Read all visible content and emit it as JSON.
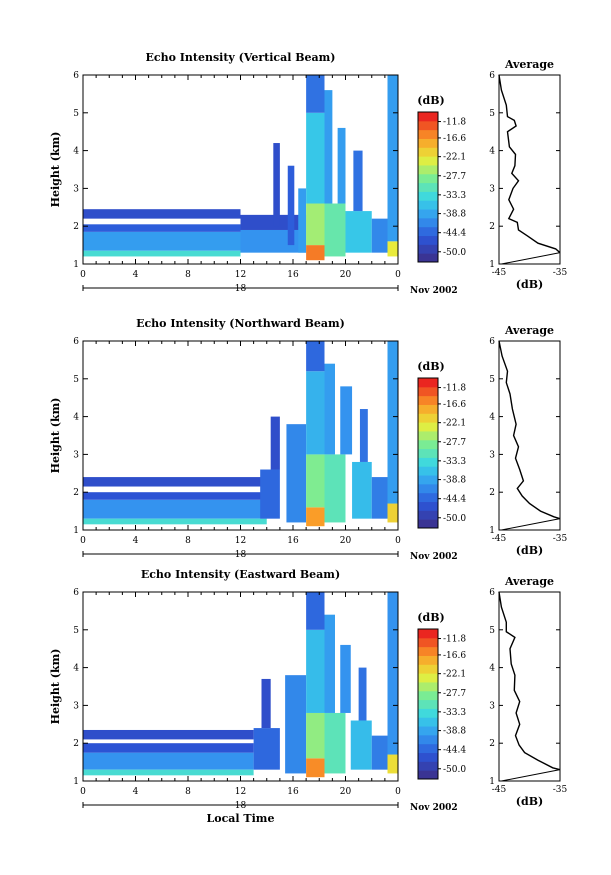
{
  "chart_data": [
    {
      "type": "heatmap",
      "title": "Echo Intensity (Vertical Beam)",
      "ylabel": "Height (km)",
      "xlabel": "",
      "x_ticks": [
        "0",
        "4",
        "8",
        "12",
        "16",
        "20",
        "0"
      ],
      "date_label": "18",
      "date_suffix": "Nov 2002",
      "xlim": [
        0,
        24
      ],
      "ylim": [
        1,
        6
      ],
      "y_ticks": [
        "1",
        "2",
        "3",
        "4",
        "5",
        "6"
      ],
      "colorbar": {
        "label": "(dB)",
        "ticks": [
          "-11.8",
          "-16.6",
          "-22.1",
          "-27.7",
          "-33.3",
          "-38.8",
          "-44.4",
          "-50.0"
        ],
        "range": [
          -53,
          -9
        ]
      },
      "average": {
        "title": "Average",
        "xlabel": "(dB)",
        "x_ticks": [
          "-45",
          "-35"
        ],
        "xlim": [
          -45,
          -35
        ],
        "profile": [
          [
            -45,
            6.0
          ],
          [
            -44.6,
            5.6
          ],
          [
            -43.8,
            5.2
          ],
          [
            -43.6,
            4.9
          ],
          [
            -42.5,
            4.8
          ],
          [
            -42.2,
            4.65
          ],
          [
            -43.6,
            4.5
          ],
          [
            -43.3,
            4.1
          ],
          [
            -42.3,
            3.9
          ],
          [
            -42.4,
            3.6
          ],
          [
            -42.9,
            3.4
          ],
          [
            -41.8,
            3.2
          ],
          [
            -42.7,
            3.0
          ],
          [
            -43.4,
            2.7
          ],
          [
            -42.6,
            2.45
          ],
          [
            -43.4,
            2.2
          ],
          [
            -42.0,
            2.1
          ],
          [
            -41.8,
            1.9
          ],
          [
            -40.4,
            1.75
          ],
          [
            -38.6,
            1.55
          ],
          [
            -35.7,
            1.4
          ],
          [
            -35,
            1.3
          ]
        ],
        "mean_line": [
          [
            -44.6,
            1.0
          ],
          [
            -35,
            1.3
          ]
        ]
      },
      "cells": [
        [
          0,
          12,
          1.35,
          1.85,
          -40
        ],
        [
          0,
          12,
          1.2,
          1.35,
          -33
        ],
        [
          0,
          12,
          1.85,
          2.05,
          -46
        ],
        [
          0,
          12,
          2.2,
          2.45,
          -48
        ],
        [
          12,
          17,
          1.3,
          1.9,
          -41
        ],
        [
          12,
          17,
          1.9,
          2.3,
          -48
        ],
        [
          14.5,
          15,
          2.0,
          4.2,
          -48
        ],
        [
          15.6,
          16.1,
          1.5,
          3.6,
          -46
        ],
        [
          16.4,
          17,
          1.3,
          3.0,
          -40
        ],
        [
          17,
          18.4,
          1.1,
          1.5,
          -14
        ],
        [
          17,
          18.4,
          1.5,
          2.6,
          -26
        ],
        [
          17,
          18.4,
          2.6,
          5.0,
          -36
        ],
        [
          17,
          18.4,
          5.0,
          6.0,
          -44
        ],
        [
          18.4,
          20,
          1.2,
          2.6,
          -30
        ],
        [
          18.4,
          19,
          2.6,
          5.6,
          -40
        ],
        [
          19.4,
          20,
          2.6,
          4.6,
          -40
        ],
        [
          20,
          22,
          1.3,
          2.4,
          -36
        ],
        [
          20.6,
          21.3,
          2.4,
          4.0,
          -44
        ],
        [
          22,
          23.2,
          1.3,
          2.2,
          -42
        ],
        [
          23.2,
          24,
          1.2,
          1.6,
          -22
        ],
        [
          23.2,
          24,
          1.6,
          6.0,
          -40
        ]
      ]
    },
    {
      "type": "heatmap",
      "title": "Echo Intensity (Northward Beam)",
      "ylabel": "Height (km)",
      "xlabel": "",
      "x_ticks": [
        "0",
        "4",
        "8",
        "12",
        "16",
        "20",
        "0"
      ],
      "date_label": "18",
      "date_suffix": "Nov 2002",
      "xlim": [
        0,
        24
      ],
      "ylim": [
        1,
        6
      ],
      "y_ticks": [
        "1",
        "2",
        "3",
        "4",
        "5",
        "6"
      ],
      "colorbar": {
        "label": "(dB)",
        "ticks": [
          "-11.8",
          "-16.6",
          "-22.1",
          "-27.7",
          "-33.3",
          "-38.8",
          "-44.4",
          "-50.0"
        ],
        "range": [
          -53,
          -9
        ]
      },
      "average": {
        "title": "Average",
        "xlabel": "(dB)",
        "x_ticks": [
          "-45",
          "-35"
        ],
        "xlim": [
          -45,
          -35
        ],
        "profile": [
          [
            -45,
            6.0
          ],
          [
            -44.5,
            5.6
          ],
          [
            -43.6,
            5.2
          ],
          [
            -43.8,
            4.9
          ],
          [
            -43.2,
            4.6
          ],
          [
            -42.8,
            4.2
          ],
          [
            -42.2,
            3.8
          ],
          [
            -42.6,
            3.5
          ],
          [
            -41.8,
            3.2
          ],
          [
            -42.3,
            2.9
          ],
          [
            -41.6,
            2.6
          ],
          [
            -41.0,
            2.3
          ],
          [
            -42.0,
            2.1
          ],
          [
            -41.2,
            1.9
          ],
          [
            -40.0,
            1.7
          ],
          [
            -38.2,
            1.5
          ],
          [
            -36.0,
            1.35
          ],
          [
            -35,
            1.3
          ]
        ],
        "mean_line": [
          [
            -44.6,
            1.0
          ],
          [
            -35,
            1.3
          ]
        ]
      },
      "cells": [
        [
          0,
          14,
          1.3,
          1.8,
          -41
        ],
        [
          0,
          14,
          1.15,
          1.3,
          -33
        ],
        [
          0,
          14,
          1.8,
          2.0,
          -47
        ],
        [
          0,
          14,
          2.15,
          2.4,
          -48
        ],
        [
          13.5,
          15,
          1.3,
          2.6,
          -45
        ],
        [
          14.3,
          15,
          2.6,
          4.0,
          -48
        ],
        [
          15.5,
          17,
          1.2,
          3.8,
          -42
        ],
        [
          17,
          18.4,
          1.1,
          1.6,
          -16
        ],
        [
          17,
          18.4,
          1.6,
          3.0,
          -28
        ],
        [
          17,
          18.4,
          3.0,
          5.2,
          -38
        ],
        [
          17,
          18.4,
          5.2,
          6.0,
          -45
        ],
        [
          18.4,
          20,
          1.2,
          3.0,
          -31
        ],
        [
          18.4,
          19.2,
          3.0,
          5.4,
          -40
        ],
        [
          19.6,
          20.5,
          3.0,
          4.8,
          -41
        ],
        [
          20.5,
          22,
          1.3,
          2.8,
          -37
        ],
        [
          21.1,
          21.7,
          2.8,
          4.2,
          -44
        ],
        [
          22,
          23.2,
          1.3,
          2.4,
          -43
        ],
        [
          23.2,
          24,
          1.2,
          1.7,
          -20
        ],
        [
          23.2,
          24,
          1.7,
          6.0,
          -40
        ]
      ]
    },
    {
      "type": "heatmap",
      "title": "Echo Intensity (Eastward Beam)",
      "ylabel": "Height (km)",
      "xlabel": "Local Time",
      "x_ticks": [
        "0",
        "4",
        "8",
        "12",
        "16",
        "20",
        "0"
      ],
      "date_label": "18",
      "date_suffix": "Nov 2002",
      "xlim": [
        0,
        24
      ],
      "ylim": [
        1,
        6
      ],
      "y_ticks": [
        "1",
        "2",
        "3",
        "4",
        "5",
        "6"
      ],
      "colorbar": {
        "label": "(dB)",
        "ticks": [
          "-11.8",
          "-16.6",
          "-22.1",
          "-27.7",
          "-33.3",
          "-38.8",
          "-44.4",
          "-50.0"
        ],
        "range": [
          -53,
          -9
        ]
      },
      "average": {
        "title": "Average",
        "xlabel": "(dB)",
        "x_ticks": [
          "-45",
          "-35"
        ],
        "xlim": [
          -45,
          -35
        ],
        "profile": [
          [
            -45,
            6.0
          ],
          [
            -44.6,
            5.6
          ],
          [
            -43.8,
            5.2
          ],
          [
            -43.8,
            4.95
          ],
          [
            -42.4,
            4.8
          ],
          [
            -43.2,
            4.5
          ],
          [
            -43.0,
            4.1
          ],
          [
            -42.4,
            3.8
          ],
          [
            -42.5,
            3.4
          ],
          [
            -41.6,
            3.1
          ],
          [
            -42.2,
            2.8
          ],
          [
            -41.6,
            2.5
          ],
          [
            -42.3,
            2.2
          ],
          [
            -41.7,
            1.95
          ],
          [
            -40.8,
            1.75
          ],
          [
            -38.6,
            1.55
          ],
          [
            -36.2,
            1.35
          ],
          [
            -35,
            1.3
          ]
        ],
        "mean_line": [
          [
            -44.6,
            1.0
          ],
          [
            -35,
            1.3
          ]
        ]
      },
      "cells": [
        [
          0,
          13,
          1.3,
          1.75,
          -41
        ],
        [
          0,
          13,
          1.15,
          1.3,
          -33
        ],
        [
          0,
          13,
          1.75,
          2.0,
          -47
        ],
        [
          0,
          13,
          2.1,
          2.35,
          -48
        ],
        [
          13,
          15,
          1.3,
          2.4,
          -45
        ],
        [
          13.6,
          14.3,
          2.4,
          3.7,
          -48
        ],
        [
          15.4,
          17,
          1.2,
          3.8,
          -42
        ],
        [
          17,
          18.4,
          1.1,
          1.6,
          -15
        ],
        [
          17,
          18.4,
          1.6,
          2.8,
          -27
        ],
        [
          17,
          18.4,
          2.8,
          5.0,
          -37
        ],
        [
          17,
          18.4,
          5.0,
          6.0,
          -45
        ],
        [
          18.4,
          20,
          1.2,
          2.8,
          -31
        ],
        [
          18.4,
          19.2,
          2.8,
          5.4,
          -40
        ],
        [
          19.6,
          20.4,
          2.8,
          4.6,
          -41
        ],
        [
          20.4,
          22,
          1.3,
          2.6,
          -37
        ],
        [
          21.0,
          21.6,
          2.6,
          4.0,
          -44
        ],
        [
          22,
          23.2,
          1.3,
          2.2,
          -43
        ],
        [
          23.2,
          24,
          1.2,
          1.7,
          -21
        ],
        [
          23.2,
          24,
          1.7,
          6.0,
          -41
        ]
      ]
    }
  ]
}
